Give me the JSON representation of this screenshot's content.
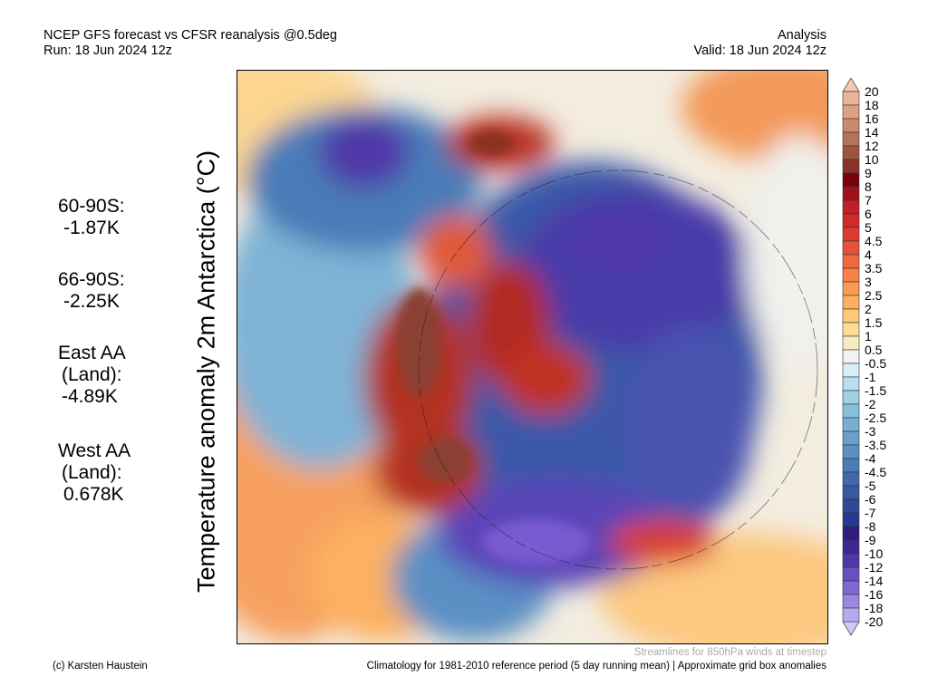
{
  "header": {
    "title": "NCEP GFS forecast vs CFSR reanalysis @0.5deg",
    "run": "Run: 18 Jun 2024 12z",
    "mode": "Analysis",
    "valid": "Valid: 18 Jun 2024 12z"
  },
  "ylabel": "Temperature anomaly 2m Antarctica (°C)",
  "stats": [
    {
      "label": "60-90S:",
      "value": "-1.87K"
    },
    {
      "label": "66-90S:",
      "value": "-2.25K"
    },
    {
      "label": "East AA",
      "label2": "(Land):",
      "value": "-4.89K"
    },
    {
      "label": "West AA",
      "label2": "(Land):",
      "value": "0.678K"
    }
  ],
  "colorbar": {
    "labels": [
      "20",
      "18",
      "16",
      "14",
      "12",
      "10",
      "9",
      "8",
      "7",
      "6",
      "5",
      "4.5",
      "4",
      "3.5",
      "3",
      "2.5",
      "2",
      "1.5",
      "1",
      "0.5",
      "-0.5",
      "-1",
      "-1.5",
      "-2",
      "-2.5",
      "-3",
      "-3.5",
      "-4",
      "-4.5",
      "-5",
      "-6",
      "-7",
      "-8",
      "-9",
      "-10",
      "-12",
      "-14",
      "-16",
      "-18",
      "-20"
    ],
    "colors": [
      "#f5c8b0",
      "#e8b49a",
      "#dca083",
      "#c98a6e",
      "#b4735a",
      "#a05440",
      "#8a3224",
      "#7a0010",
      "#a01018",
      "#c02028",
      "#d02a2a",
      "#dd3a30",
      "#e85038",
      "#f06a40",
      "#f8804a",
      "#fa9a55",
      "#fcb060",
      "#fdc878",
      "#fddc98",
      "#f8ecc0",
      "#f2f2f2",
      "#d8eef8",
      "#b8e0f0",
      "#a0d0e4",
      "#88c0dc",
      "#78b0d4",
      "#6aa0cc",
      "#5a90c4",
      "#4a7cb8",
      "#4068ac",
      "#3858a0",
      "#304898",
      "#283890",
      "#301c80",
      "#402890",
      "#5038a8",
      "#6850c0",
      "#8068d0",
      "#9c88e0",
      "#b8a8f0",
      "#d0c8f8"
    ]
  },
  "footer": {
    "credit": "(c) Karsten Haustein",
    "streamlines": "Streamlines for 850hPa winds at timestep",
    "climatology": "Climatology for 1981-2010 reference period (5 day running mean) | Approximate grid box anomalies"
  }
}
